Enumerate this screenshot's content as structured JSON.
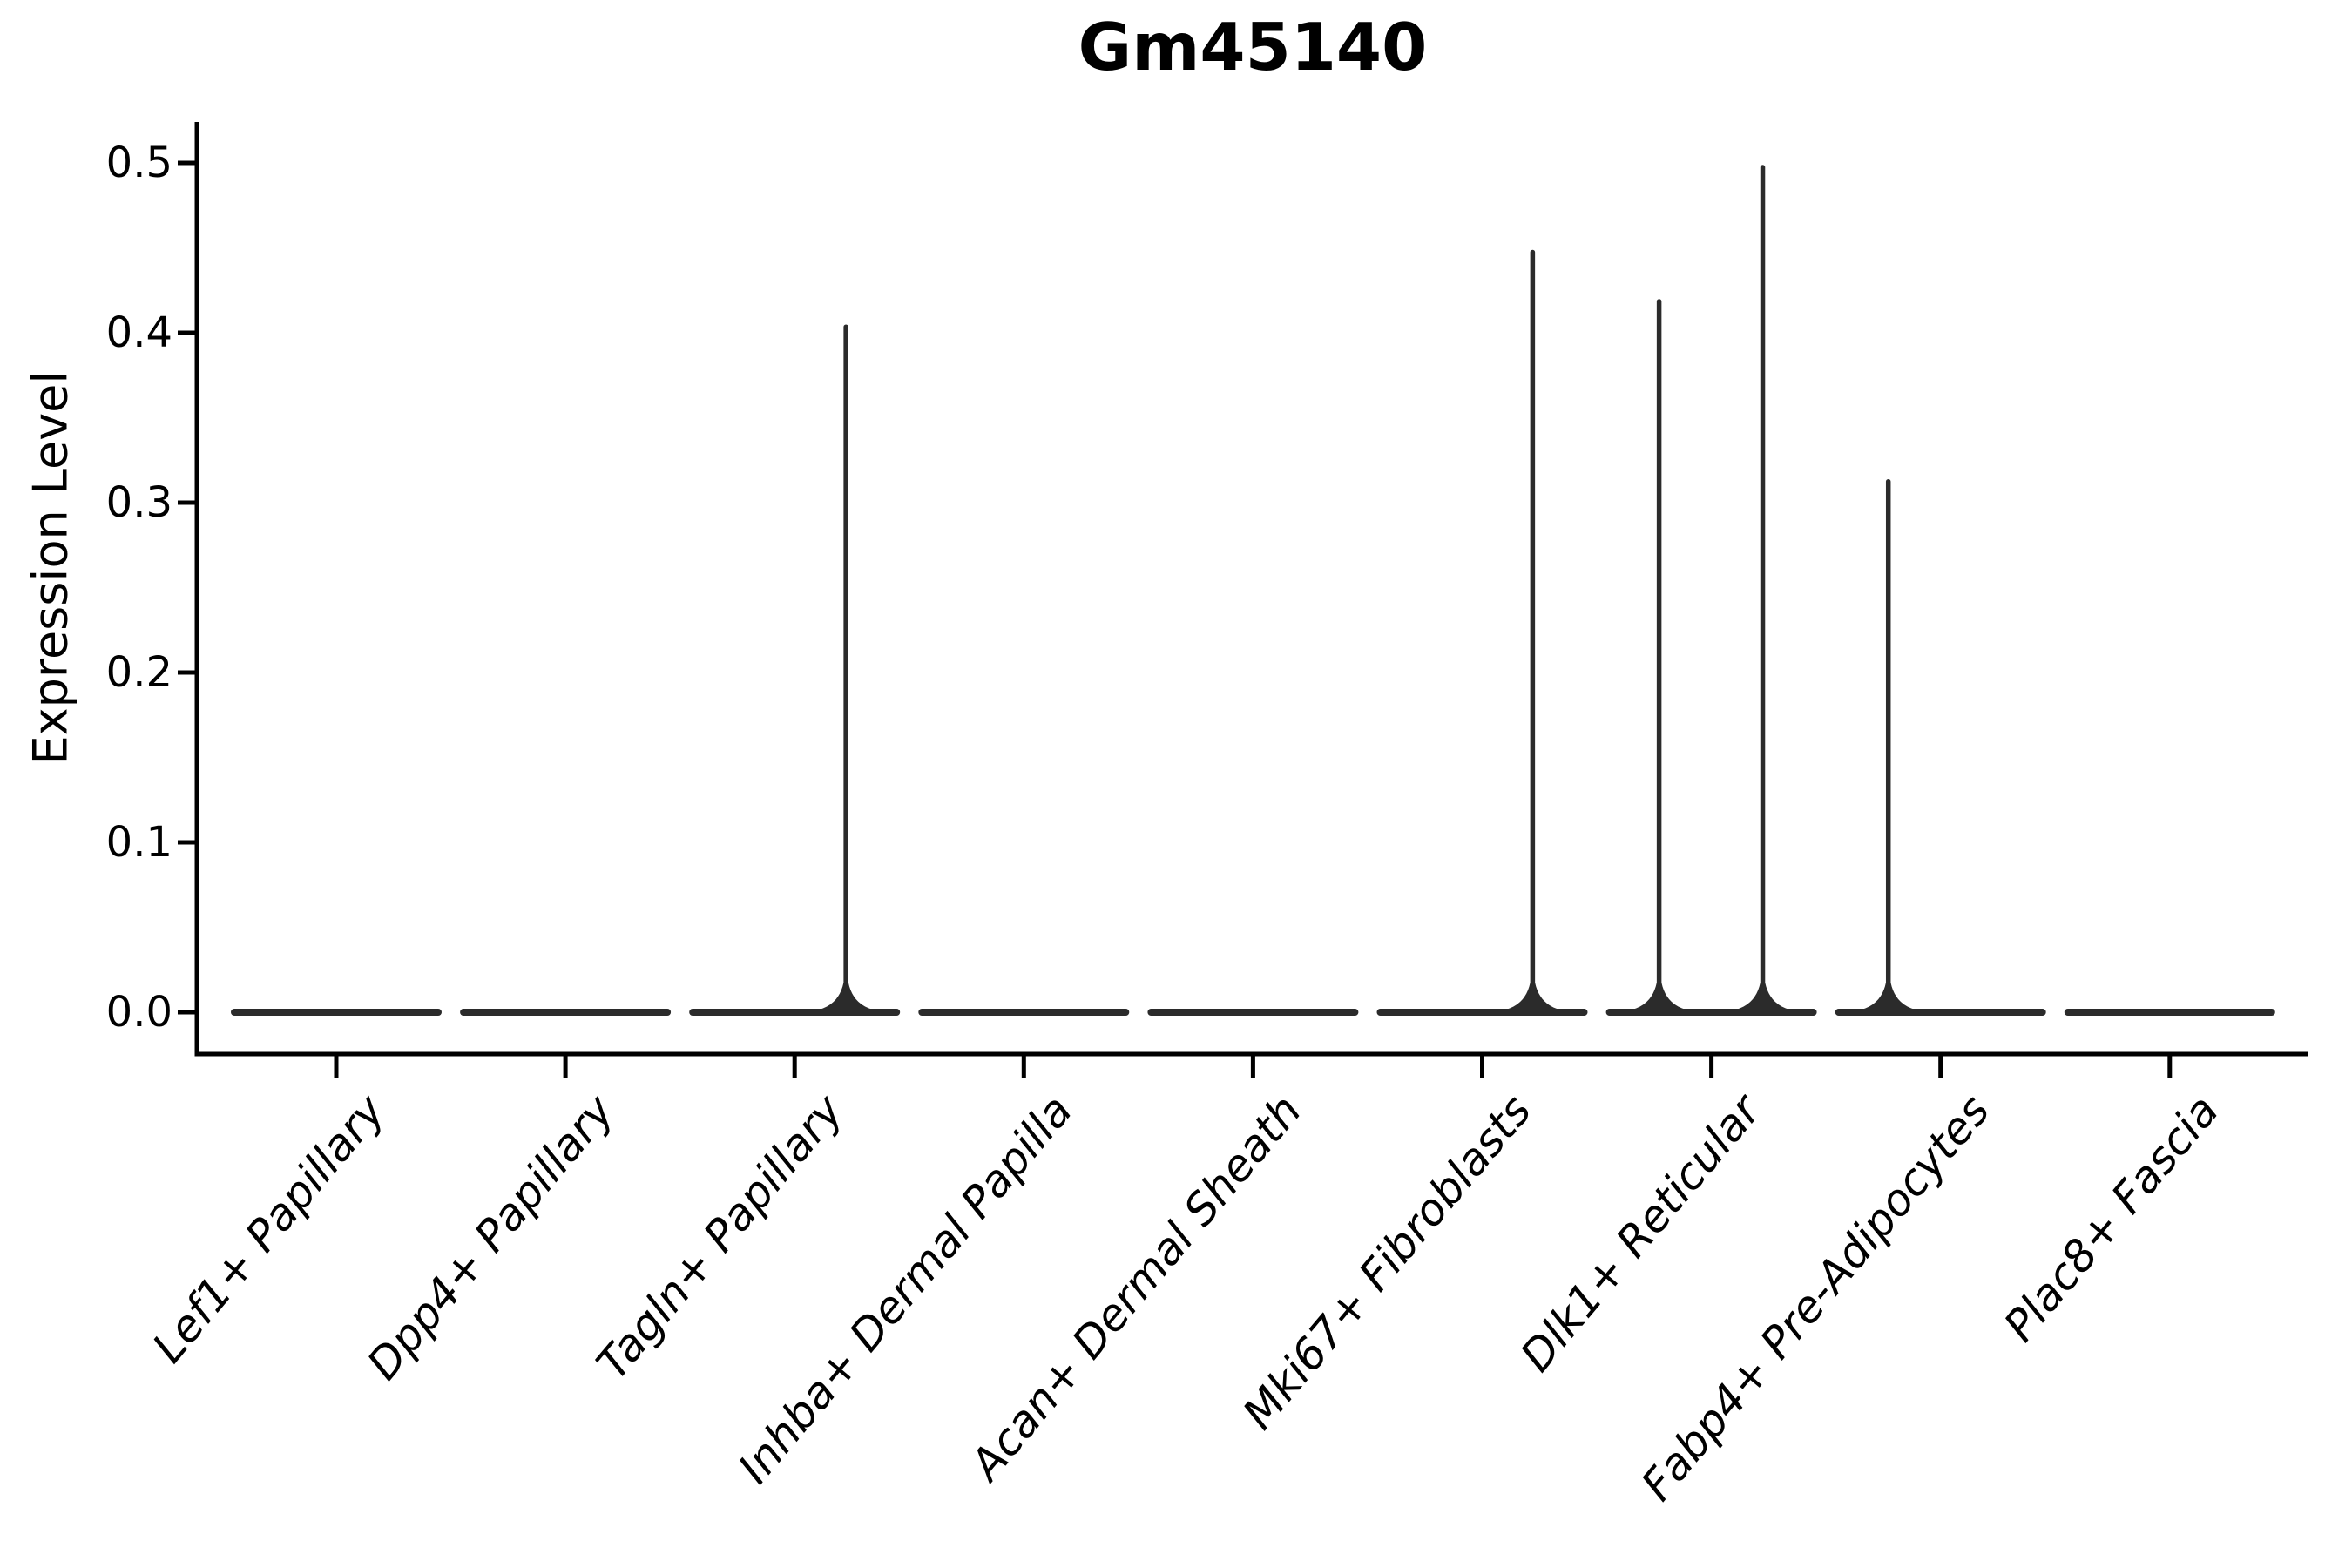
{
  "title": "Gm45140",
  "ylabel": "Expression Level",
  "chart_data": {
    "type": "violin",
    "title": "Gm45140",
    "xlabel": "",
    "ylabel": "Expression Level",
    "categories": [
      "Lef1+ Papillary",
      "Dpp4+ Papillary",
      "Tagln+ Papillary",
      "Inhba+ Dermal Papilla",
      "Acan+ Dermal Sheath",
      "Mki67+ Fibroblasts",
      "Dlk1+ Reticular",
      "Fabp4+ Pre-Adipocytes",
      "Plac8+ Fascia"
    ],
    "y_ticks": [
      "0.0",
      "0.1",
      "0.2",
      "0.3",
      "0.4",
      "0.5"
    ],
    "y_tick_values": [
      0.0,
      0.1,
      0.2,
      0.3,
      0.4,
      0.5
    ],
    "ylim": [
      -0.025,
      0.525
    ],
    "grid": false,
    "legend": "none",
    "violins": [
      {
        "category": "Lef1+ Papillary",
        "body_at_zero": true,
        "spikes": []
      },
      {
        "category": "Dpp4+ Papillary",
        "body_at_zero": true,
        "spikes": []
      },
      {
        "category": "Tagln+ Papillary",
        "body_at_zero": true,
        "spikes": [
          {
            "x_offset": 0.224,
            "value": 0.405
          }
        ]
      },
      {
        "category": "Inhba+ Dermal Papilla",
        "body_at_zero": true,
        "spikes": []
      },
      {
        "category": "Acan+ Dermal Sheath",
        "body_at_zero": true,
        "spikes": []
      },
      {
        "category": "Mki67+ Fibroblasts",
        "body_at_zero": true,
        "spikes": [
          {
            "x_offset": 0.22,
            "value": 0.449
          }
        ]
      },
      {
        "category": "Dlk1+ Reticular",
        "body_at_zero": true,
        "spikes": [
          {
            "x_offset": -0.228,
            "value": 0.42
          },
          {
            "x_offset": 0.224,
            "value": 0.499
          }
        ]
      },
      {
        "category": "Fabp4+ Pre-Adipocytes",
        "body_at_zero": true,
        "spikes": [
          {
            "x_offset": -0.228,
            "value": 0.314
          }
        ]
      },
      {
        "category": "Plac8+ Fascia",
        "body_at_zero": true,
        "spikes": []
      }
    ],
    "colors": {
      "violin": "#2b2b2b",
      "axis": "#000000",
      "text": "#000000",
      "background": "#ffffff"
    }
  }
}
